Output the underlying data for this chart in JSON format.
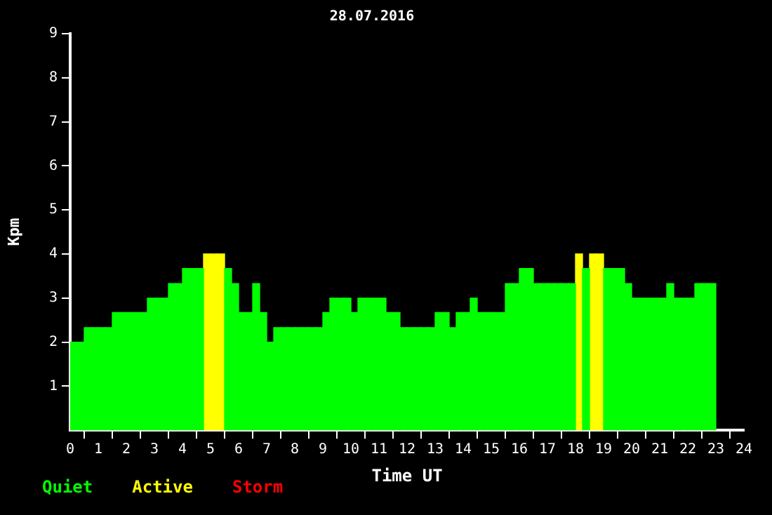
{
  "chart_data": {
    "type": "bar",
    "title": "28.07.2016",
    "xlabel": "Time UT",
    "ylabel": "Kpm",
    "x": [
      0.125,
      0.375,
      0.625,
      0.875,
      1.125,
      1.375,
      1.625,
      1.875,
      2.125,
      2.375,
      2.625,
      2.875,
      3.125,
      3.375,
      3.625,
      3.875,
      4.125,
      4.375,
      4.625,
      4.875,
      5.125,
      5.375,
      5.625,
      5.875,
      6.125,
      6.375,
      6.625,
      6.875,
      7.125,
      7.375,
      7.625,
      7.875,
      8.125,
      8.375,
      8.625,
      8.875,
      9.125,
      9.375,
      9.625,
      9.875,
      10.125,
      10.375,
      10.625,
      10.875,
      11.125,
      11.375,
      11.625,
      11.875,
      12.125,
      12.375,
      12.625,
      12.875,
      13.125,
      13.375,
      13.625,
      13.875,
      14.125,
      14.375,
      14.625,
      14.875,
      15.125,
      15.375,
      15.625,
      15.875,
      16.125,
      16.375,
      16.625,
      16.875,
      17.125,
      17.375,
      17.625,
      17.875,
      18.125,
      18.375,
      18.625,
      18.875,
      19.125,
      19.375,
      19.625,
      19.875,
      20.125,
      20.375,
      20.625,
      20.875,
      21.125,
      21.375,
      21.625,
      21.875,
      22.125,
      22.375,
      22.625,
      22.875
    ],
    "series": [
      {
        "name": "Quiet",
        "color": "#00ff00",
        "values": [
          2,
          2,
          2.33,
          2.33,
          2.33,
          2.33,
          2.67,
          2.67,
          2.67,
          2.67,
          2.67,
          3,
          3,
          3,
          3.33,
          3.33,
          3.67,
          3.67,
          3.67,
          null,
          null,
          null,
          3.67,
          3.33,
          2.67,
          2.67,
          3.33,
          2.67,
          2,
          2.33,
          2.33,
          2.33,
          2.33,
          2.33,
          2.33,
          2.33,
          2.67,
          3,
          3,
          3,
          2.67,
          3,
          3,
          3,
          3,
          2.67,
          2.67,
          2.33,
          2.33,
          2.33,
          2.33,
          2.33,
          2.67,
          2.67,
          2.33,
          2.67,
          2.67,
          3,
          2.67,
          2.67,
          2.67,
          2.67,
          3.33,
          3.33,
          3.67,
          3.67,
          3.33,
          3.33,
          3.33,
          3.33,
          3.33,
          3.33,
          null,
          3.67,
          null,
          null,
          3.67,
          3.67,
          3.67,
          3.33,
          3,
          3,
          3,
          3,
          3,
          3.33,
          3,
          3,
          3,
          3.33,
          3.33,
          3.33
        ]
      },
      {
        "name": "Active",
        "color": "#ffff00",
        "values": [
          null,
          null,
          null,
          null,
          null,
          null,
          null,
          null,
          null,
          null,
          null,
          null,
          null,
          null,
          null,
          null,
          null,
          null,
          null,
          4,
          4,
          4,
          null,
          null,
          null,
          null,
          null,
          null,
          null,
          null,
          null,
          null,
          null,
          null,
          null,
          null,
          null,
          null,
          null,
          null,
          null,
          null,
          null,
          null,
          null,
          null,
          null,
          null,
          null,
          null,
          null,
          null,
          null,
          null,
          null,
          null,
          null,
          null,
          null,
          null,
          null,
          null,
          null,
          null,
          null,
          null,
          null,
          null,
          null,
          null,
          null,
          null,
          4,
          null,
          4,
          4,
          null,
          null,
          null,
          null,
          null,
          null,
          null,
          null,
          null,
          null,
          null,
          null,
          null,
          null,
          null,
          null
        ]
      },
      {
        "name": "Storm",
        "color": "#ff0000",
        "values": [
          null,
          null,
          null,
          null,
          null,
          null,
          null,
          null,
          null,
          null,
          null,
          null,
          null,
          null,
          null,
          null,
          null,
          null,
          null,
          null,
          null,
          null,
          null,
          null,
          null,
          null,
          null,
          null,
          null,
          null,
          null,
          null,
          null,
          null,
          null,
          null,
          null,
          null,
          null,
          null,
          null,
          null,
          null,
          null,
          null,
          null,
          null,
          null,
          null,
          null,
          null,
          null,
          null,
          null,
          null,
          null,
          null,
          null,
          null,
          null,
          null,
          null,
          null,
          null,
          null,
          null,
          null,
          null,
          null,
          null,
          null,
          null,
          null,
          null,
          null,
          null,
          null,
          null,
          null,
          null,
          null,
          null,
          null,
          null,
          null,
          null,
          null,
          null,
          null,
          null,
          null,
          null
        ]
      }
    ],
    "xlim": [
      0,
      24
    ],
    "xticks": [
      0,
      1,
      2,
      3,
      4,
      5,
      6,
      7,
      8,
      9,
      10,
      11,
      12,
      13,
      14,
      15,
      16,
      17,
      18,
      19,
      20,
      21,
      22,
      23,
      24
    ],
    "ylim": [
      0,
      9
    ],
    "yticks": [
      1,
      2,
      3,
      4,
      5,
      6,
      7,
      8,
      9
    ],
    "legend": "bottom left",
    "grid": false
  }
}
